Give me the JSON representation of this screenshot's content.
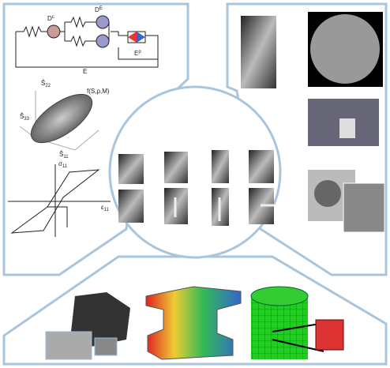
{
  "rheology": {
    "damage_c": {
      "base": "D",
      "sup": "c"
    },
    "damage_e": {
      "base": "D",
      "sup": "E"
    },
    "plastic": {
      "base": "E",
      "sup": "p"
    },
    "elastic": "E"
  },
  "yield_surface": {
    "label": "f(S,ρ,M)",
    "axis_a": {
      "base": "Ŝ",
      "sub": "22"
    },
    "axis_b": {
      "base": "Ŝ",
      "sub": "33"
    },
    "axis_c": {
      "base": "Ŝ",
      "sub": "11"
    }
  },
  "hysteresis": {
    "axis_y": {
      "base": "σ",
      "sub": "11"
    },
    "axis_x": {
      "base": "ε",
      "sub": "11"
    }
  }
}
